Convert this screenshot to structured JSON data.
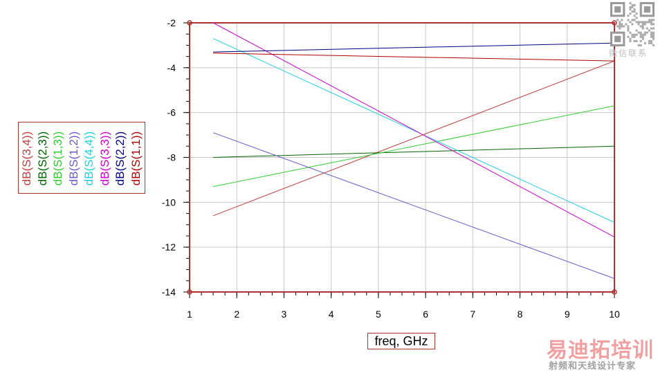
{
  "chart_data": {
    "type": "line",
    "title": "",
    "xlabel": "freq, GHz",
    "ylabel": "",
    "xlim": [
      1,
      10
    ],
    "ylim": [
      -14,
      -2
    ],
    "x_ticks": [
      "1",
      "2",
      "3",
      "4",
      "5",
      "6",
      "7",
      "8",
      "9",
      "10"
    ],
    "y_ticks": [
      "-2",
      "-4",
      "-6",
      "-8",
      "-10",
      "-12",
      "-14"
    ],
    "grid": true,
    "legend_position": "left, rotated vertical",
    "series": [
      {
        "name": "dB(S(3,4))",
        "color": "#c04040",
        "x": [
          1.5,
          10
        ],
        "y": [
          -10.6,
          -3.7
        ]
      },
      {
        "name": "dB(S(2,3))",
        "color": "#006400",
        "x": [
          1.5,
          10
        ],
        "y": [
          -8.0,
          -7.5
        ]
      },
      {
        "name": "dB(S(1,3))",
        "color": "#33cc33",
        "x": [
          1.5,
          10
        ],
        "y": [
          -9.3,
          -5.7
        ]
      },
      {
        "name": "dB(S(1,2))",
        "color": "#6a5acd",
        "x": [
          1.5,
          10
        ],
        "y": [
          -6.9,
          -13.4
        ]
      },
      {
        "name": "dB(S(4,4))",
        "color": "#20d0e0",
        "x": [
          1.5,
          10
        ],
        "y": [
          -2.7,
          -10.9
        ]
      },
      {
        "name": "dB(S(3,3))",
        "color": "#cc00cc",
        "x": [
          1.5,
          10
        ],
        "y": [
          -2.0,
          -11.55
        ]
      },
      {
        "name": "dB(S(2,2))",
        "color": "#000080",
        "x": [
          1.5,
          10
        ],
        "y": [
          -3.3,
          -2.9
        ]
      },
      {
        "name": "dB(S(1,1))",
        "color": "#b00000",
        "x": [
          1.5,
          10
        ],
        "y": [
          -3.35,
          -3.7
        ]
      }
    ]
  },
  "watermark": {
    "qr_caption": "微信联系",
    "title": "易迪拓培训",
    "subtitle": "射频和天线设计专家"
  }
}
